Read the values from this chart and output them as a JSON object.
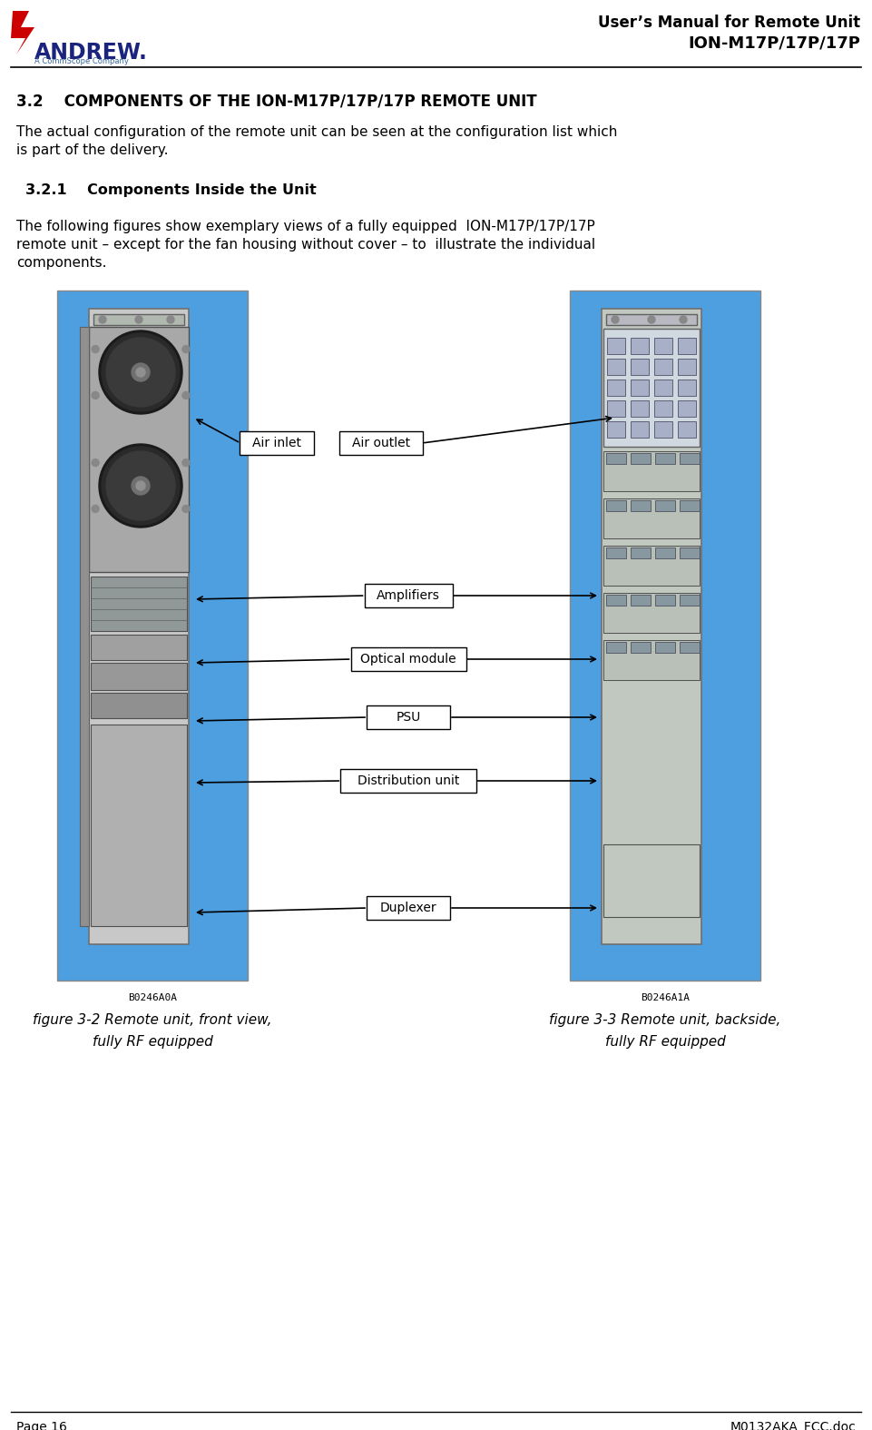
{
  "page_width": 9.61,
  "page_height": 15.75,
  "bg_color": "#ffffff",
  "header_title_line1": "User’s Manual for Remote Unit",
  "header_title_line2": "ION-M17P/17P/17P",
  "header_logo_text": "ANDREW.",
  "header_sub_text": "A CommScope Company",
  "section_title": "3.2    COMPONENTS OF THE ION-M17P/17P/17P REMOTE UNIT",
  "para1_line1": "The actual configuration of the remote unit can be seen at the configuration list which",
  "para1_line2": "is part of the delivery.",
  "section_sub_title": "3.2.1    Components Inside the Unit",
  "para2_line1": "The following figures show exemplary views of a fully equipped  ION-M17P/17P/17P",
  "para2_line2": "remote unit – except for the fan housing without cover – to  illustrate the individual",
  "para2_line3": "components.",
  "fig1_code": "B0246A0A",
  "fig2_code": "B0246A1A",
  "footer_left": "Page 16",
  "footer_right": "M0132AKA_FCC.doc",
  "label_air_inlet": "Air inlet",
  "label_air_outlet": "Air outlet",
  "label_amplifiers": "Amplifiers",
  "label_optical": "Optical module",
  "label_psu": "PSU",
  "label_distribution": "Distribution unit",
  "label_duplexer": "Duplexer",
  "blue_bg": "#4d9fe0",
  "fig_caption1_line1": "figure 3-2 Remote unit, front view,",
  "fig_caption1_line2": "fully RF equipped",
  "fig_caption2_line1": "figure 3-3 Remote unit, backside,",
  "fig_caption2_line2": "fully RF equipped"
}
